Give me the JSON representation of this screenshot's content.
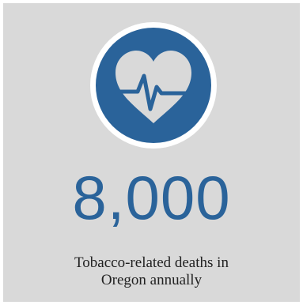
{
  "stat": {
    "value": "8,000",
    "caption_line1": "Tobacco-related deaths in",
    "caption_line2": "Oregon annually"
  },
  "icon": {
    "name": "heart-pulse-icon",
    "circle_color": "#2a639a",
    "ring_color": "#ffffff",
    "heart_color": "#d9d9d9"
  },
  "colors": {
    "background": "#d9d9d9",
    "accent": "#2a639a",
    "text": "#222222"
  }
}
